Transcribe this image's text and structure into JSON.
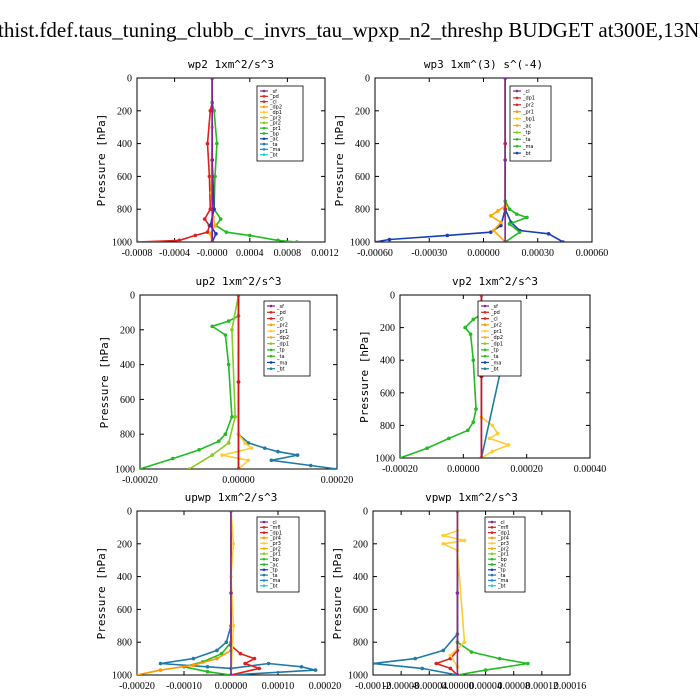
{
  "page_title": "thist.fdef.taus_tuning_clubb_c_invrs_tau_wpxp_n2_threshp  BUDGET at300E,13N",
  "chart_data": [
    {
      "type": "line",
      "title": "wp2  1xm^2/s^3",
      "ylabel": "Pressure [hPa]",
      "ylim": [
        1000,
        0
      ],
      "yticks": [
        "0",
        "200",
        "400",
        "600",
        "800",
        "1000"
      ],
      "xlim": [
        -0.0008,
        0.0012
      ],
      "xticks": [
        "-0.0008",
        "-0.0004",
        "-0.0000",
        "0.0004",
        "0.0008",
        "0.0012"
      ],
      "legend": [
        "_sf",
        "_pd",
        "_cl",
        "_dp2",
        "_dp1",
        "_pr3",
        "_pr2",
        "_pr1",
        "_bp",
        "_ac",
        "_ta",
        "_ma",
        "_bt"
      ],
      "series": [
        {
          "name": "_dp1",
          "color": "#dd2020",
          "x": [
            0,
            0,
            -2e-05,
            -5e-05,
            -3e-05,
            -2e-05,
            -8e-05,
            -3e-05,
            -5e-05,
            -0.00018,
            -0.00035,
            -0.0008
          ],
          "y": [
            0,
            150,
            200,
            400,
            600,
            800,
            860,
            900,
            940,
            960,
            990,
            1000
          ]
        },
        {
          "name": "_pr1",
          "color": "#22bb22",
          "x": [
            0,
            0,
            2e-05,
            5e-05,
            3e-05,
            2e-05,
            9e-05,
            4e-05,
            0.00015,
            0.0004,
            0.0007,
            0.0009
          ],
          "y": [
            0,
            150,
            200,
            400,
            600,
            800,
            860,
            900,
            940,
            960,
            990,
            1000
          ]
        },
        {
          "name": "_cl",
          "color": "#ffaa00",
          "x": [
            0,
            0,
            -1e-05,
            1e-05,
            3e-05,
            -2e-05,
            0
          ],
          "y": [
            0,
            300,
            700,
            850,
            900,
            950,
            1000
          ]
        },
        {
          "name": "_pd",
          "color": "#1a3fb0",
          "x": [
            0,
            0,
            2e-05,
            -2e-05,
            4e-05,
            0
          ],
          "y": [
            0,
            500,
            800,
            900,
            950,
            1000
          ]
        },
        {
          "name": "_sf",
          "color": "#8a1f9a",
          "x": [
            0,
            0,
            0
          ],
          "y": [
            0,
            500,
            1000
          ]
        }
      ]
    },
    {
      "type": "line",
      "title": "wp3  1xm^(3) s^(-4)",
      "ylabel": "Pressure [hPa]",
      "ylim": [
        1000,
        0
      ],
      "yticks": [
        "0",
        "200",
        "400",
        "600",
        "800",
        "1000"
      ],
      "xlim": [
        -0.0009,
        0.0006
      ],
      "xticks": [
        "-0.00060",
        "-0.00030",
        "0.00000",
        "0.00030",
        "0.00060"
      ],
      "legend": [
        "_cl",
        "_dp1",
        "_pr2",
        "_pr1",
        "_bp1",
        "_ac",
        "_tp",
        "_ta",
        "_ma",
        "_bt"
      ],
      "series": [
        {
          "name": "_tp",
          "color": "#1a3fb0",
          "x": [
            0,
            0,
            -3e-05,
            -0.0001,
            -0.0004,
            -0.0008,
            -0.0009
          ],
          "y": [
            0,
            800,
            900,
            940,
            960,
            985,
            1000
          ]
        },
        {
          "name": "_ta",
          "color": "#1a3fb0",
          "x": [
            0,
            0,
            4e-05,
            0.0001,
            0.0003,
            0.0004
          ],
          "y": [
            0,
            800,
            880,
            930,
            950,
            1000
          ]
        },
        {
          "name": "_ac",
          "color": "#22bb22",
          "x": [
            0,
            0,
            3e-05,
            8e-05,
            0.00015,
            3e-05,
            0.0001,
            0
          ],
          "y": [
            0,
            750,
            800,
            830,
            850,
            890,
            940,
            1000
          ]
        },
        {
          "name": "_pr2",
          "color": "#ffaa00",
          "x": [
            0,
            0,
            -5e-05,
            -0.0001,
            -3e-05,
            -8e-05,
            0
          ],
          "y": [
            0,
            780,
            810,
            840,
            880,
            930,
            1000
          ]
        },
        {
          "name": "_dp1",
          "color": "#dd2020",
          "x": [
            0,
            0,
            0,
            0
          ],
          "y": [
            0,
            400,
            800,
            1000
          ]
        },
        {
          "name": "_cl",
          "color": "#7a2f9a",
          "x": [
            0,
            0,
            0
          ],
          "y": [
            0,
            500,
            1000
          ]
        }
      ]
    },
    {
      "type": "line",
      "title": "up2  1xm^2/s^3",
      "ylabel": "Pressure [hPa]",
      "ylim": [
        1000,
        0
      ],
      "yticks": [
        "0",
        "200",
        "400",
        "600",
        "800",
        "1000"
      ],
      "xlim": [
        -0.0003,
        0.0003
      ],
      "xticks": [
        "-0.00020",
        "0.00000",
        "0.00020"
      ],
      "legend": [
        "_sf",
        "_pd",
        "_cl",
        "_pr2",
        "_pr1",
        "_dp2",
        "_dp1",
        "_tp",
        "_ta",
        "_ma",
        "_bt"
      ],
      "series": [
        {
          "name": "_dp1",
          "color": "#22bb22",
          "x": [
            0,
            0,
            -3e-05,
            -8e-05,
            -4e-05,
            -3e-05,
            -2e-05,
            -4e-05,
            -6e-05,
            -0.00012,
            -0.0002,
            -0.0003
          ],
          "y": [
            0,
            120,
            150,
            180,
            230,
            400,
            700,
            800,
            840,
            890,
            940,
            1000
          ]
        },
        {
          "name": "_dp2",
          "color": "#88cc22",
          "x": [
            0,
            -2e-05,
            -1e-05,
            -3e-05,
            -8e-05,
            -0.00015
          ],
          "y": [
            0,
            200,
            700,
            850,
            920,
            1000
          ]
        },
        {
          "name": "_tp",
          "color": "#1f7aa8",
          "x": [
            0,
            0,
            3e-05,
            8e-05,
            0.00012,
            0.00018,
            0.0001,
            0.00022,
            0.0003
          ],
          "y": [
            0,
            800,
            850,
            880,
            900,
            920,
            950,
            980,
            1000
          ]
        },
        {
          "name": "_pr2",
          "color": "#ffcc33",
          "x": [
            0,
            0,
            2e-05,
            4e-05,
            -5e-05,
            3e-05,
            0
          ],
          "y": [
            0,
            800,
            850,
            880,
            920,
            950,
            1000
          ]
        },
        {
          "name": "_sf",
          "color": "#8a1f9a",
          "x": [
            0,
            0,
            0
          ],
          "y": [
            0,
            500,
            1000
          ]
        },
        {
          "name": "_cl",
          "color": "#cc1818",
          "x": [
            0,
            0,
            0
          ],
          "y": [
            0,
            500,
            1000
          ]
        }
      ]
    },
    {
      "type": "line",
      "title": "vp2  1xm^2/s^3",
      "ylabel": "Pressure [hPa]",
      "ylim": [
        1000,
        0
      ],
      "yticks": [
        "0",
        "200",
        "400",
        "600",
        "800",
        "1000"
      ],
      "xlim": [
        -0.0003,
        0.0004
      ],
      "xticks": [
        "-0.00020",
        "0.00000",
        "0.00020",
        "0.00040"
      ],
      "legend": [
        "_sf",
        "_pd",
        "_cl",
        "_pr2",
        "_pr1",
        "_dp2",
        "_dp1",
        "_tp",
        "_ta",
        "_ma",
        "_bt"
      ],
      "series": [
        {
          "name": "_dp1",
          "color": "#22bb22",
          "x": [
            0,
            0,
            -3e-05,
            -6e-05,
            -4e-05,
            -3e-05,
            -2e-05,
            -3e-05,
            -5e-05,
            -0.00012,
            -0.0002,
            -0.0003
          ],
          "y": [
            0,
            120,
            150,
            200,
            240,
            400,
            700,
            780,
            830,
            880,
            940,
            1000
          ]
        },
        {
          "name": "_pr1",
          "color": "#ffcc33",
          "x": [
            0,
            0,
            4e-05,
            6e-05,
            3e-05,
            0.0001,
            4e-05,
            0
          ],
          "y": [
            0,
            750,
            800,
            850,
            880,
            920,
            960,
            1000
          ]
        },
        {
          "name": "_tp",
          "color": "#1f7aa8",
          "x": [
            0,
            0,
            4e-05,
            8e-05,
            5e-05,
            0.0001,
            0
          ],
          "y": [
            0,
            120,
            150,
            180,
            200,
            240,
            1000
          ]
        },
        {
          "name": "_sf",
          "color": "#8a1f9a",
          "x": [
            0,
            0,
            0
          ],
          "y": [
            0,
            500,
            1000
          ]
        },
        {
          "name": "_cl",
          "color": "#cc1818",
          "x": [
            0,
            0,
            0
          ],
          "y": [
            0,
            500,
            1000
          ]
        }
      ]
    },
    {
      "type": "line",
      "title": "upwp  1xm^2/s^3",
      "ylabel": "Pressure [hPa]",
      "ylim": [
        1000,
        0
      ],
      "yticks": [
        "0",
        "200",
        "400",
        "600",
        "800",
        "1000"
      ],
      "xlim": [
        -0.0002,
        0.0002
      ],
      "xticks": [
        "-0.00020",
        "-0.00010",
        "0.00000",
        "0.00010",
        "0.00020"
      ],
      "legend": [
        "_cl",
        "_mfl",
        "_dp1",
        "_pr4",
        "_pr3",
        "_pr2",
        "_pr1",
        "_bp",
        "_ac",
        "_tp",
        "_ta",
        "_ma",
        "_bt"
      ],
      "series": [
        {
          "name": "_tp",
          "color": "#1f7aa8",
          "x": [
            0,
            0,
            -1e-05,
            -3e-05,
            -8e-05,
            -0.00015,
            -5e-05,
            0,
            8e-05,
            0.00015,
            0.00018,
            0
          ],
          "y": [
            0,
            700,
            800,
            850,
            900,
            930,
            950,
            960,
            930,
            950,
            970,
            1000
          ]
        },
        {
          "name": "_ac",
          "color": "#22bb22",
          "x": [
            0,
            0,
            -2e-05,
            -6e-05,
            -0.0001,
            -5e-05,
            0
          ],
          "y": [
            0,
            800,
            870,
            920,
            950,
            980,
            1000
          ]
        },
        {
          "name": "_pr1",
          "color": "#ff9900",
          "x": [
            0,
            0,
            -3e-05,
            -8e-05,
            -0.00015,
            -0.0002
          ],
          "y": [
            0,
            850,
            900,
            940,
            970,
            1000
          ]
        },
        {
          "name": "_dp1",
          "color": "#dd2020",
          "x": [
            0,
            0,
            2e-05,
            5e-05,
            3e-05,
            6e-05,
            0
          ],
          "y": [
            0,
            820,
            870,
            900,
            930,
            960,
            1000
          ]
        },
        {
          "name": "_pr2",
          "color": "#ffcc33",
          "x": [
            0,
            5e-06,
            0,
            5e-06,
            0
          ],
          "y": [
            0,
            200,
            400,
            700,
            1000
          ]
        },
        {
          "name": "_cl",
          "color": "#7a2f9a",
          "x": [
            0,
            0,
            0
          ],
          "y": [
            0,
            500,
            1000
          ]
        }
      ]
    },
    {
      "type": "line",
      "title": "vpwp  1xm^2/s^3",
      "ylabel": "Pressure [hPa]",
      "ylim": [
        1000,
        0
      ],
      "yticks": [
        "0",
        "200",
        "400",
        "600",
        "800",
        "1000"
      ],
      "xlim": [
        -0.00012,
        0.00016
      ],
      "xticks": [
        "-0.00012",
        "-0.00008",
        "-0.00004",
        "0.00000",
        "0.00004",
        "0.00008",
        "0.00012",
        "0.00016"
      ],
      "legend": [
        "_cl",
        "_mfl",
        "_dp1",
        "_pr4",
        "_pr3",
        "_pr2",
        "_pr1",
        "_bp",
        "_ac",
        "_tp",
        "_ta",
        "_ma",
        "_bt"
      ],
      "series": [
        {
          "name": "_tp",
          "color": "#1f7aa8",
          "x": [
            0,
            0,
            -2e-05,
            -6e-05,
            -0.00012,
            -5e-05,
            0
          ],
          "y": [
            0,
            750,
            850,
            900,
            930,
            960,
            1000
          ]
        },
        {
          "name": "_ac",
          "color": "#22bb22",
          "x": [
            0,
            0,
            2e-05,
            6e-05,
            0.0001,
            4e-05,
            0
          ],
          "y": [
            0,
            800,
            860,
            900,
            930,
            970,
            1000
          ]
        },
        {
          "name": "_dp1",
          "color": "#dd2020",
          "x": [
            0,
            0,
            -1e-05,
            -3e-05,
            -1e-05,
            0
          ],
          "y": [
            0,
            850,
            900,
            930,
            960,
            1000
          ]
        },
        {
          "name": "_pr1",
          "color": "#ffcc33",
          "x": [
            0,
            0,
            -2e-05,
            1e-05,
            -2e-05,
            0,
            1e-05,
            -1e-05,
            0,
            0
          ],
          "y": [
            0,
            120,
            150,
            180,
            200,
            240,
            800,
            880,
            950,
            1000
          ]
        },
        {
          "name": "_cl",
          "color": "#7a2f9a",
          "x": [
            0,
            0,
            0
          ],
          "y": [
            0,
            500,
            1000
          ]
        }
      ]
    }
  ]
}
